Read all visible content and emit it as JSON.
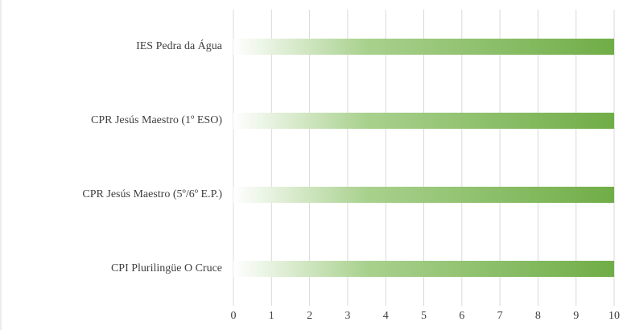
{
  "chart_data": {
    "type": "bar",
    "orientation": "horizontal",
    "categories": [
      "IES Pedra da Água",
      "CPR Jesús Maestro (1º ESO)",
      "CPR Jesús Maestro (5º/6º E.P.)",
      "CPI Plurilingüe O Cruce"
    ],
    "values": [
      10,
      10,
      10,
      10
    ],
    "color": "#70ad47",
    "gradient": true,
    "xlim": [
      0,
      10
    ],
    "xticks": [
      0,
      1,
      2,
      3,
      4,
      5,
      6,
      7,
      8,
      9,
      10
    ],
    "grid": true
  }
}
